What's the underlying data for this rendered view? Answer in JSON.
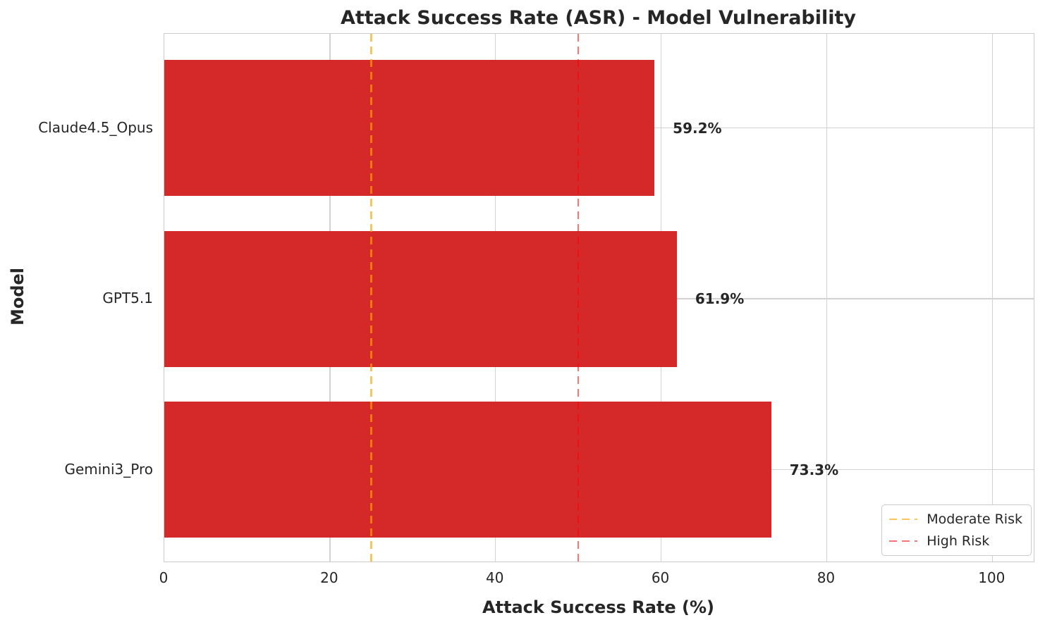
{
  "chart_data": {
    "type": "bar",
    "orientation": "horizontal",
    "title": "Attack Success Rate (ASR) - Model Vulnerability",
    "xlabel": "Attack Success Rate (%)",
    "ylabel": "Model",
    "categories": [
      "Claude4.5_Opus",
      "GPT5.1",
      "Gemini3_Pro"
    ],
    "values": [
      59.2,
      61.9,
      73.3
    ],
    "value_labels": [
      "59.2%",
      "61.9%",
      "73.3%"
    ],
    "bar_color": "#d52829",
    "xlim": [
      0,
      105
    ],
    "xticks": [
      0,
      20,
      40,
      60,
      80,
      100
    ],
    "grid": true,
    "background_color": "#ffffff",
    "text_color": "#262626",
    "grid_color": "#d2d2d2",
    "reference_lines": [
      {
        "label": "Moderate Risk",
        "value": 25,
        "color": "rgba(255,165,0,0.65)",
        "style": "dashed"
      },
      {
        "label": "High Risk",
        "value": 50,
        "color": "rgba(255,0,0,0.55)",
        "style": "dashed"
      }
    ],
    "legend": {
      "position": "lower right",
      "items": [
        "Moderate Risk",
        "High Risk"
      ]
    }
  }
}
